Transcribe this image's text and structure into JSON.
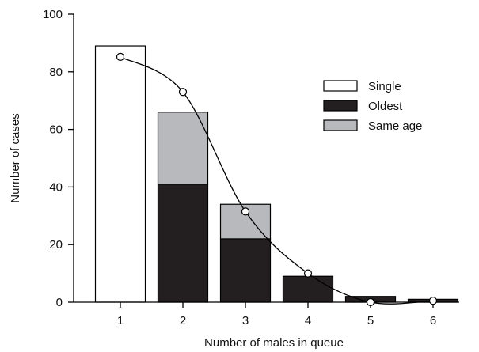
{
  "chart_data": {
    "type": "bar",
    "stacked": true,
    "xlabel": "Number of males in queue",
    "ylabel": "Number of cases",
    "categories": [
      "1",
      "2",
      "3",
      "4",
      "5",
      "6"
    ],
    "ylim": [
      0,
      100
    ],
    "yticks": [
      0,
      20,
      40,
      60,
      80,
      100
    ],
    "series": [
      {
        "name": "Single",
        "color": "#ffffff",
        "values": [
          89,
          0,
          0,
          0,
          0,
          0
        ]
      },
      {
        "name": "Oldest",
        "color": "#231f20",
        "values": [
          0,
          41,
          22,
          9,
          2,
          1
        ]
      },
      {
        "name": "Same age",
        "color": "#b8b9bc",
        "values": [
          0,
          25,
          12,
          0,
          0,
          0
        ]
      }
    ],
    "line": {
      "marker": "open-circle",
      "smooth": true,
      "values": [
        85.2,
        73,
        31.5,
        10,
        0,
        0.5
      ]
    },
    "grid": false,
    "legend_position": "top-right"
  }
}
